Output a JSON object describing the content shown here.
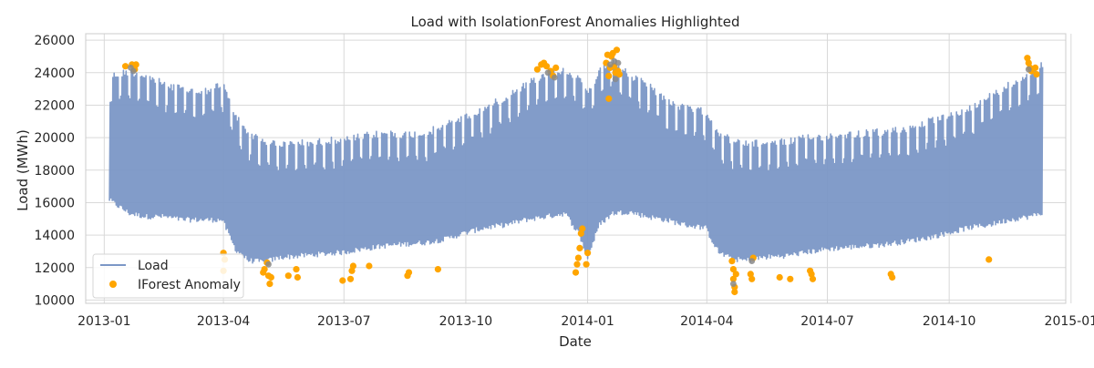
{
  "chart_data": {
    "type": "line",
    "title": "Load with IsolationForest Anomalies Highlighted",
    "xlabel": "Date",
    "ylabel": "Load (MWh)",
    "xlim": [
      "2012-12-18",
      "2014-12-28"
    ],
    "ylim": [
      9800,
      26400
    ],
    "x_tick_values": [
      "2013-01-01",
      "2013-04-01",
      "2013-07-01",
      "2013-10-01",
      "2014-01-01",
      "2014-04-01",
      "2014-07-01",
      "2014-10-01",
      "2015-01-01"
    ],
    "x_tick_labels": [
      "2013-01",
      "2013-04",
      "2013-07",
      "2013-10",
      "2014-01",
      "2014-04",
      "2014-07",
      "2014-10",
      "2015-01"
    ],
    "y_ticks": [
      10000,
      12000,
      14000,
      16000,
      18000,
      20000,
      22000,
      24000,
      26000
    ],
    "grid": true,
    "legend_position": "lower-left",
    "colors": {
      "load": "#7b97c6",
      "anomaly": "#ffa500",
      "anomaly_overlap": "#8a8a8a",
      "grid": "#d9d9d9"
    },
    "series": [
      {
        "name": "Load",
        "kind": "line",
        "note": "hourly load; daily peaks (upper envelope) and nightly troughs (lower envelope)",
        "envelope_dates": [
          "2013-01-05",
          "2013-01-20",
          "2013-02-01",
          "2013-02-15",
          "2013-03-01",
          "2013-03-15",
          "2013-03-31",
          "2013-04-10",
          "2013-04-20",
          "2013-05-01",
          "2013-05-15",
          "2013-06-01",
          "2013-06-15",
          "2013-07-01",
          "2013-07-15",
          "2013-08-01",
          "2013-08-15",
          "2013-09-01",
          "2013-09-15",
          "2013-10-01",
          "2013-10-15",
          "2013-11-01",
          "2013-11-15",
          "2013-12-01",
          "2013-12-15",
          "2013-12-25",
          "2014-01-01",
          "2014-01-10",
          "2014-01-20",
          "2014-02-01",
          "2014-02-15",
          "2014-03-01",
          "2014-03-15",
          "2014-03-31",
          "2014-04-10",
          "2014-04-20",
          "2014-05-01",
          "2014-05-15",
          "2014-06-01",
          "2014-06-15",
          "2014-07-01",
          "2014-07-15",
          "2014-08-01",
          "2014-08-15",
          "2014-09-01",
          "2014-09-15",
          "2014-10-01",
          "2014-10-15",
          "2014-11-01",
          "2014-11-15",
          "2014-12-01",
          "2014-12-10"
        ],
        "daily_peak": [
          24000,
          24300,
          24000,
          23500,
          23200,
          23000,
          23500,
          21500,
          20500,
          20000,
          19800,
          19900,
          20000,
          20100,
          20300,
          20500,
          20400,
          20500,
          21000,
          21500,
          22000,
          22800,
          23500,
          24200,
          24400,
          23800,
          23000,
          24300,
          25000,
          24000,
          23500,
          22500,
          22000,
          21800,
          20500,
          20000,
          19800,
          19900,
          20000,
          20200,
          20300,
          20400,
          20500,
          20600,
          20800,
          21200,
          21500,
          22000,
          22800,
          23500,
          24200,
          24800
        ],
        "daily_trough": [
          16000,
          15200,
          15000,
          15000,
          14800,
          14800,
          14800,
          13000,
          12300,
          12200,
          12500,
          12600,
          12700,
          12800,
          13000,
          13200,
          13300,
          13400,
          13600,
          14000,
          14300,
          14500,
          14800,
          15000,
          15200,
          14000,
          12500,
          14500,
          15200,
          15300,
          15000,
          14800,
          14500,
          14300,
          12800,
          12400,
          12300,
          12500,
          12600,
          12800,
          13000,
          13100,
          13200,
          13300,
          13500,
          13700,
          14000,
          14300,
          14500,
          14800,
          15000,
          15200
        ]
      },
      {
        "name": "IForest Anomaly",
        "kind": "scatter",
        "points": [
          [
            "2013-01-17",
            24400
          ],
          [
            "2013-01-22",
            24500
          ],
          [
            "2013-01-24",
            24200
          ],
          [
            "2013-01-25",
            24500
          ],
          [
            "2013-04-01",
            12900
          ],
          [
            "2013-04-02",
            12500
          ],
          [
            "2013-04-01",
            11800
          ],
          [
            "2013-05-01",
            11700
          ],
          [
            "2013-05-02",
            11900
          ],
          [
            "2013-05-04",
            12300
          ],
          [
            "2013-05-05",
            11500
          ],
          [
            "2013-05-06",
            11000
          ],
          [
            "2013-05-07",
            11400
          ],
          [
            "2013-05-20",
            11500
          ],
          [
            "2013-05-26",
            11900
          ],
          [
            "2013-05-27",
            11400
          ],
          [
            "2013-06-30",
            11200
          ],
          [
            "2013-07-06",
            11300
          ],
          [
            "2013-07-07",
            11800
          ],
          [
            "2013-07-08",
            12100
          ],
          [
            "2013-07-20",
            12100
          ],
          [
            "2013-08-18",
            11500
          ],
          [
            "2013-08-19",
            11700
          ],
          [
            "2013-09-10",
            11900
          ],
          [
            "2013-11-24",
            24200
          ],
          [
            "2013-11-27",
            24500
          ],
          [
            "2013-11-29",
            24600
          ],
          [
            "2013-12-01",
            24400
          ],
          [
            "2013-12-04",
            24100
          ],
          [
            "2013-12-06",
            23800
          ],
          [
            "2013-12-08",
            24300
          ],
          [
            "2013-12-23",
            11700
          ],
          [
            "2013-12-24",
            12200
          ],
          [
            "2013-12-25",
            12600
          ],
          [
            "2013-12-26",
            13200
          ],
          [
            "2013-12-27",
            14100
          ],
          [
            "2013-12-28",
            14400
          ],
          [
            "2013-12-31",
            12200
          ],
          [
            "2014-01-01",
            12900
          ],
          [
            "2014-01-15",
            24600
          ],
          [
            "2014-01-16",
            25100
          ],
          [
            "2014-01-17",
            23800
          ],
          [
            "2014-01-18",
            24300
          ],
          [
            "2014-01-19",
            25000
          ],
          [
            "2014-01-20",
            25200
          ],
          [
            "2014-01-21",
            24400
          ],
          [
            "2014-01-22",
            24000
          ],
          [
            "2014-01-23",
            25400
          ],
          [
            "2014-01-24",
            24100
          ],
          [
            "2014-01-25",
            23900
          ],
          [
            "2014-01-17",
            22400
          ],
          [
            "2014-04-20",
            12400
          ],
          [
            "2014-04-21",
            11900
          ],
          [
            "2014-04-21",
            11300
          ],
          [
            "2014-04-22",
            10800
          ],
          [
            "2014-04-22",
            10500
          ],
          [
            "2014-04-23",
            11600
          ],
          [
            "2014-05-04",
            11600
          ],
          [
            "2014-05-05",
            11300
          ],
          [
            "2014-05-06",
            12600
          ],
          [
            "2014-05-26",
            11400
          ],
          [
            "2014-06-03",
            11300
          ],
          [
            "2014-06-18",
            11800
          ],
          [
            "2014-06-19",
            11600
          ],
          [
            "2014-06-20",
            11300
          ],
          [
            "2014-08-18",
            11600
          ],
          [
            "2014-08-19",
            11400
          ],
          [
            "2014-10-31",
            12500
          ],
          [
            "2014-11-29",
            24900
          ],
          [
            "2014-11-30",
            24600
          ],
          [
            "2014-12-01",
            24300
          ],
          [
            "2014-12-02",
            24100
          ],
          [
            "2014-12-05",
            24300
          ],
          [
            "2014-12-06",
            23900
          ]
        ],
        "overlap_points": [
          [
            "2013-01-21",
            24300
          ],
          [
            "2013-01-23",
            24100
          ],
          [
            "2013-12-02",
            24000
          ],
          [
            "2013-12-07",
            23700
          ],
          [
            "2014-01-18",
            24500
          ],
          [
            "2014-01-21",
            24700
          ],
          [
            "2014-01-22",
            23600
          ],
          [
            "2014-01-24",
            24600
          ],
          [
            "2014-04-21",
            11000
          ],
          [
            "2014-05-05",
            12400
          ],
          [
            "2013-05-05",
            12200
          ],
          [
            "2014-11-30",
            24200
          ]
        ]
      }
    ]
  }
}
